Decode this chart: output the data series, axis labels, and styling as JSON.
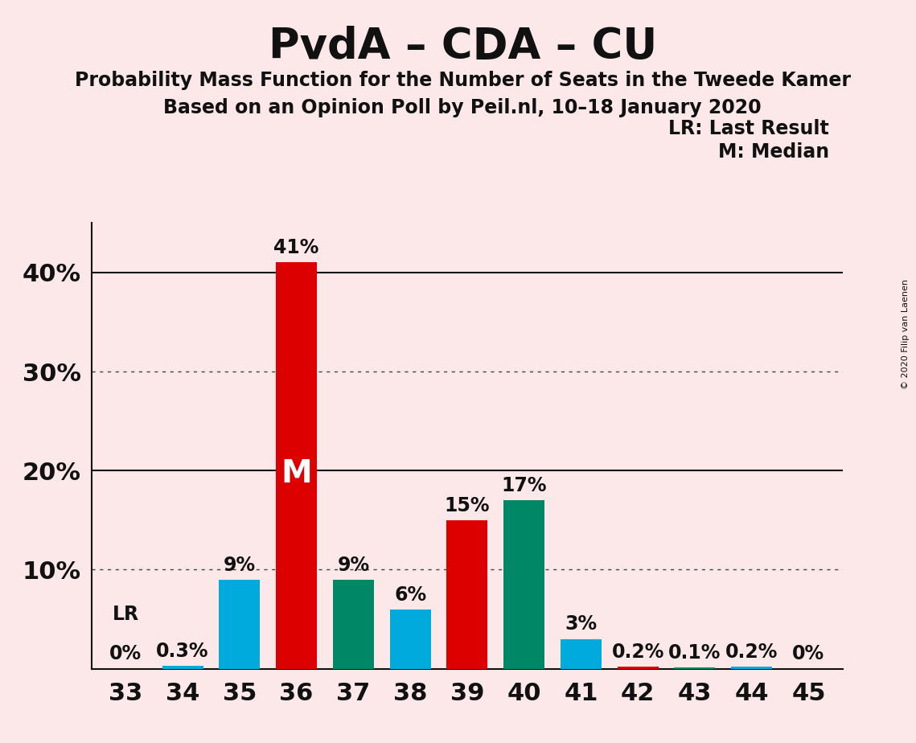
{
  "title": "PvdA – CDA – CU",
  "subtitle1": "Probability Mass Function for the Number of Seats in the Tweede Kamer",
  "subtitle2": "Based on an Opinion Poll by Peil.nl, 10–18 January 2020",
  "copyright": "© 2020 Filip van Laenen",
  "legend_lr": "LR: Last Result",
  "legend_m": "M: Median",
  "background_color": "#fce8e8",
  "seats": [
    33,
    34,
    35,
    36,
    37,
    38,
    39,
    40,
    41,
    42,
    43,
    44,
    45
  ],
  "values": [
    0.0,
    0.3,
    9.0,
    41.0,
    9.0,
    6.0,
    15.0,
    17.0,
    3.0,
    0.2,
    0.1,
    0.2,
    0.0
  ],
  "bar_colors": [
    "#00aadd",
    "#00aadd",
    "#00aadd",
    "#dd0000",
    "#008866",
    "#00aadd",
    "#dd0000",
    "#008866",
    "#00aadd",
    "#dd0000",
    "#008866",
    "#00aadd",
    "#008866"
  ],
  "median_seat": 36,
  "lr_seat": 33,
  "ylim": [
    0,
    45
  ],
  "yticks": [
    10,
    20,
    30,
    40
  ],
  "ytick_labels": [
    "10%",
    "20%",
    "30%",
    "40%"
  ],
  "dotted_lines": [
    10.0,
    30.0
  ],
  "solid_lines": [
    20.0,
    40.0
  ],
  "title_fontsize": 38,
  "subtitle_fontsize": 17,
  "axis_label_fontsize": 22,
  "bar_label_fontsize": 17,
  "legend_fontsize": 17,
  "m_label_fontsize": 28
}
